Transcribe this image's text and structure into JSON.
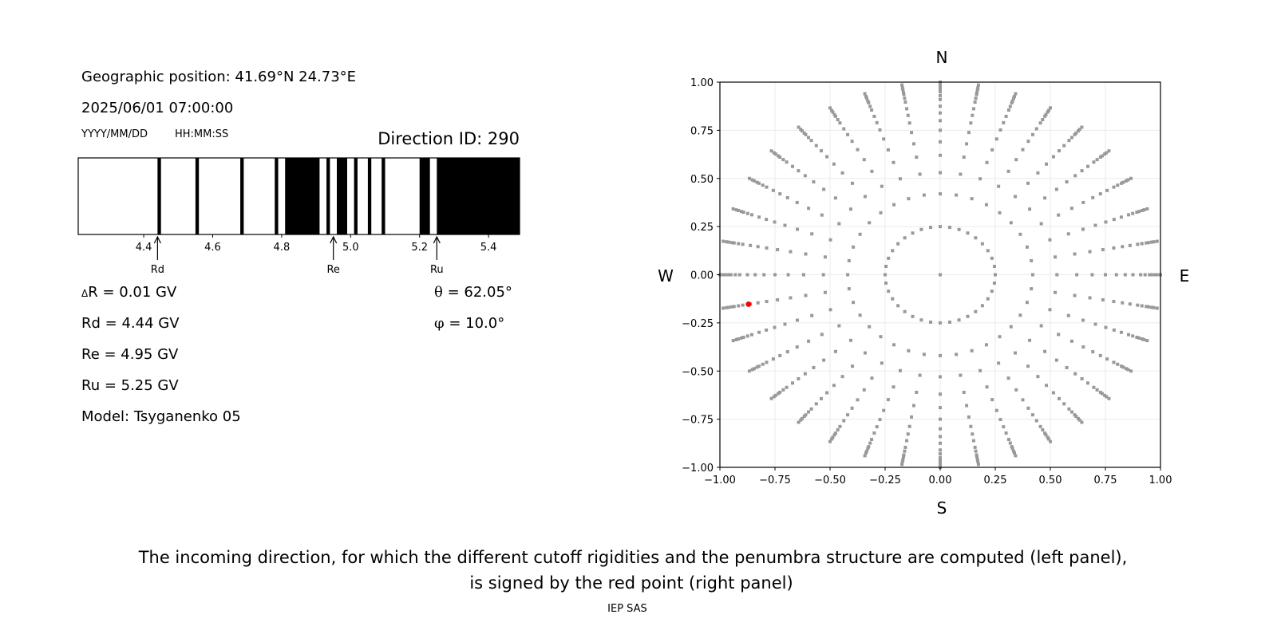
{
  "left_panel": {
    "geo_position": "Geographic position: 41.69°N 24.73°E",
    "datetime": "2025/06/01 07:00:00",
    "date_format_label": "YYYY/MM/DD",
    "time_format_label": "HH:MM:SS",
    "direction_id": "Direction ID: 290",
    "delta_r_symbol": "Δ",
    "delta_r": "R = 0.01 GV",
    "rd": "Rd = 4.44 GV",
    "re": "Re = 4.95 GV",
    "ru": "Ru = 5.25 GV",
    "model": "Model: Tsyganenko 05",
    "theta_symbol": "θ",
    "theta": " = 62.05°",
    "phi_symbol": "φ",
    "phi": " = 10.0°"
  },
  "chart_data": [
    {
      "type": "penumbra-bar",
      "xlabel": "",
      "xlim": [
        4.21,
        5.49
      ],
      "xticks": [
        4.4,
        4.6,
        4.8,
        5.0,
        5.2,
        5.4
      ],
      "xtick_labels": [
        "4.4",
        "4.6",
        "4.8",
        "5.0",
        "5.2",
        "5.4"
      ],
      "colors": {
        "allowed": "#ffffff",
        "forbidden": "#000000"
      },
      "forbidden_intervals_gv": [
        [
          4.44,
          4.45
        ],
        [
          4.55,
          4.56
        ],
        [
          4.68,
          4.69
        ],
        [
          4.78,
          4.79
        ],
        [
          4.81,
          4.91
        ],
        [
          4.93,
          4.94
        ],
        [
          4.96,
          4.99
        ],
        [
          5.01,
          5.02
        ],
        [
          5.05,
          5.06
        ],
        [
          5.09,
          5.1
        ],
        [
          5.2,
          5.23
        ],
        [
          5.25,
          5.49
        ]
      ],
      "markers": [
        {
          "label": "Rd",
          "value": 4.44
        },
        {
          "label": "Re",
          "value": 4.95
        },
        {
          "label": "Ru",
          "value": 5.25
        }
      ]
    },
    {
      "type": "scatter",
      "xlim": [
        -1,
        1
      ],
      "ylim": [
        -1,
        1
      ],
      "grid": true,
      "xticks": [
        -1.0,
        -0.75,
        -0.5,
        -0.25,
        0.0,
        0.25,
        0.5,
        0.75,
        1.0
      ],
      "xtick_labels": [
        "−1.00",
        "−0.75",
        "−0.50",
        "−0.25",
        "0.00",
        "0.25",
        "0.50",
        "0.75",
        "1.00"
      ],
      "yticks": [
        -1.0,
        -0.75,
        -0.5,
        -0.25,
        0.0,
        0.25,
        0.5,
        0.75,
        1.0
      ],
      "ytick_labels": [
        "−1.00",
        "−0.75",
        "−0.50",
        "−0.25",
        "0.00",
        "0.25",
        "0.50",
        "0.75",
        "1.00"
      ],
      "direction_labels": {
        "north": "N",
        "south": "S",
        "west": "W",
        "east": "E"
      },
      "grid_points": {
        "center": [
          0,
          0
        ],
        "ring_radii": [
          0.25,
          0.42,
          0.53,
          0.62,
          0.69,
          0.75,
          0.8,
          0.84,
          0.875,
          0.91,
          0.93,
          0.95,
          0.96,
          0.975,
          0.985,
          1.0
        ],
        "azimuth_step_deg": 10,
        "color": "#999999"
      },
      "highlight_point": {
        "x": -0.87,
        "y": -0.153,
        "color": "#ff0000"
      }
    }
  ],
  "caption": {
    "line1": "The incoming direction, for which the different cutoff rigidities and the penumbra structure are computed (left panel),",
    "line2": "is signed by the red point (right panel)"
  },
  "credit": "IEP SAS"
}
